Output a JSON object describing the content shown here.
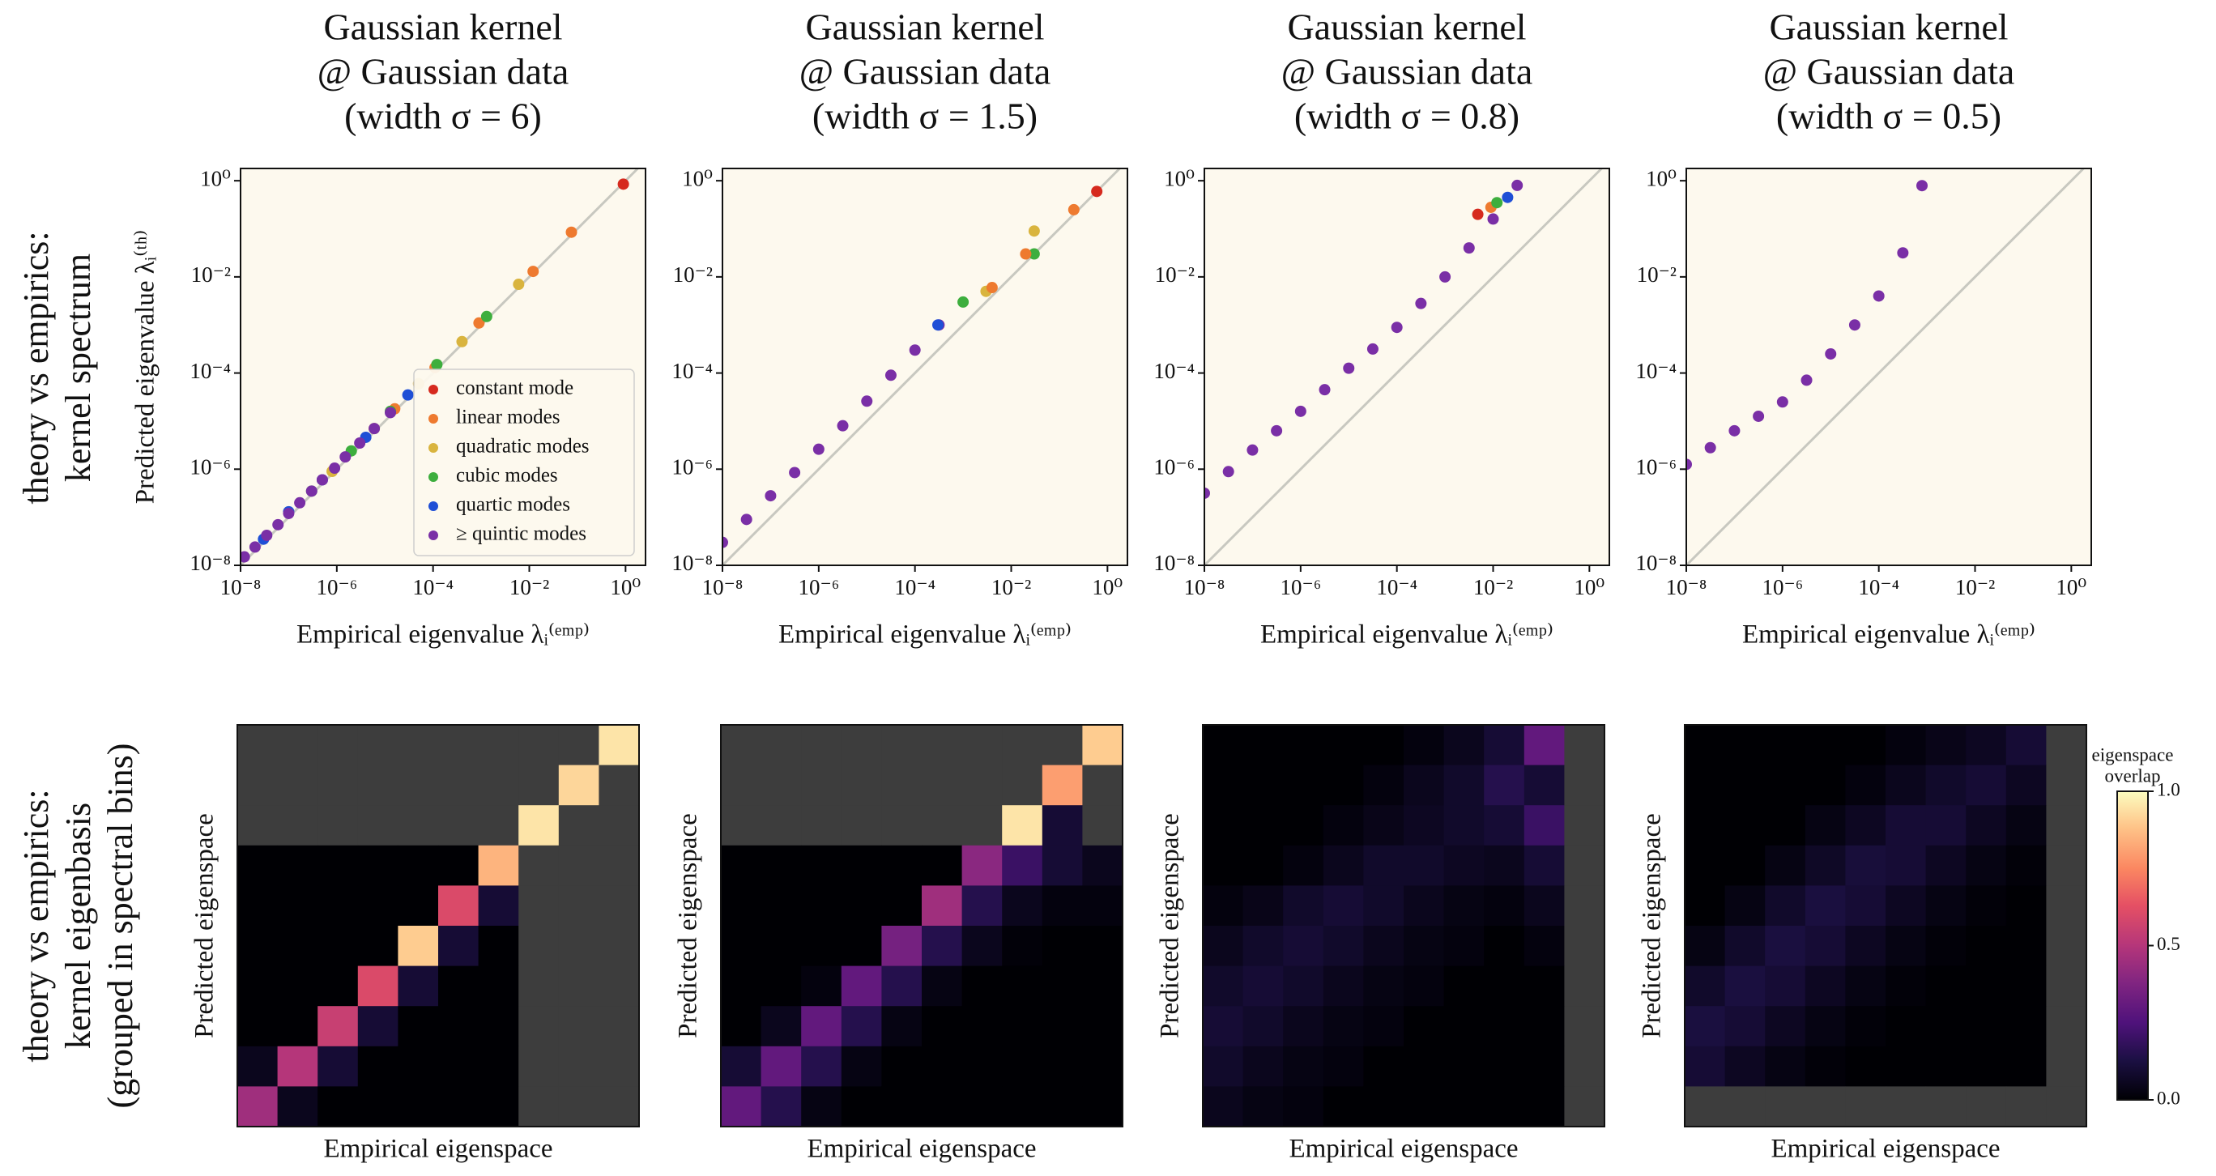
{
  "row_labels": [
    [
      "theory vs empirics:",
      "kernel spectrum"
    ],
    [
      "theory vs empirics:",
      "kernel eigenbasis",
      "(grouped in spectral bins)"
    ]
  ],
  "colorbar": {
    "title": [
      "eigenspace",
      "overlap"
    ],
    "clim": [
      0,
      1
    ],
    "ticks": [
      {
        "value": 0,
        "label": "0.0"
      },
      {
        "value": 0.5,
        "label": "0.5"
      },
      {
        "value": 1,
        "label": "1.0"
      }
    ]
  },
  "chart_data": [
    {
      "type": "scatter",
      "title": [
        "Gaussian kernel",
        "@ Gaussian data",
        "(width σ = 6)"
      ],
      "x_label": "Empirical eigenvalue λᵢ⁽ᵉᵐᵖ⁾",
      "y_label": "Predicted eigenvalue λᵢ⁽ᵗʰ⁾",
      "xscale": "log",
      "yscale": "log",
      "xlim": [
        1e-08,
        2.6
      ],
      "ylim": [
        1e-08,
        1.8
      ],
      "xticks": [
        {
          "value": 1e-08,
          "label": "10⁻⁸"
        },
        {
          "value": 1e-06,
          "label": "10⁻⁶"
        },
        {
          "value": 0.0001,
          "label": "10⁻⁴"
        },
        {
          "value": 0.01,
          "label": "10⁻²"
        },
        {
          "value": 1,
          "label": "10⁰"
        }
      ],
      "yticks": [
        {
          "value": 1e-08,
          "label": "10⁻⁸"
        },
        {
          "value": 1e-06,
          "label": "10⁻⁶"
        },
        {
          "value": 0.0001,
          "label": "10⁻⁴"
        },
        {
          "value": 0.01,
          "label": "10⁻²"
        },
        {
          "value": 1,
          "label": "10⁰"
        }
      ],
      "legend": "lower right",
      "series": [
        {
          "name": "constant mode",
          "color": "#d62a1e",
          "x": [
            0.9
          ],
          "values": [
            0.85
          ]
        },
        {
          "name": "linear modes",
          "color": "#ee7a2f",
          "x": [
            0.075,
            0.012,
            0.0009,
            0.00011,
            1.6e-05
          ],
          "values": [
            0.085,
            0.013,
            0.0011,
            0.00013,
            1.8e-05
          ]
        },
        {
          "name": "quadratic modes",
          "color": "#d9b43e",
          "x": [
            0.006,
            0.0004,
            5e-05,
            6e-06,
            8e-07
          ],
          "values": [
            0.007,
            0.00045,
            6e-05,
            7e-06,
            9e-07
          ]
        },
        {
          "name": "cubic modes",
          "color": "#3dae3d",
          "x": [
            0.0013,
            0.00012,
            1.3e-05,
            2e-06,
            3e-07
          ],
          "values": [
            0.0015,
            0.00015,
            1.6e-05,
            2.4e-06,
            3.5e-07
          ]
        },
        {
          "name": "quartic modes",
          "color": "#1f4fd6",
          "x": [
            3e-05,
            4e-06,
            5e-07,
            1e-07,
            3e-08
          ],
          "values": [
            3.5e-05,
            4.6e-06,
            6e-07,
            1.3e-07,
            3.5e-08
          ]
        },
        {
          "name": "≥ quintic modes",
          "color": "#7a2fa6",
          "x": [
            1.3e-05,
            6e-06,
            3e-06,
            1.5e-06,
            9e-07,
            5e-07,
            3e-07,
            1.7e-07,
            1e-07,
            6e-08,
            3.5e-08,
            2e-08,
            1.2e-08
          ],
          "values": [
            1.5e-05,
            7e-06,
            3.5e-06,
            1.8e-06,
            1.05e-06,
            6e-07,
            3.5e-07,
            2e-07,
            1.2e-07,
            7e-08,
            4.2e-08,
            2.4e-08,
            1.5e-08
          ]
        }
      ]
    },
    {
      "type": "scatter",
      "title": [
        "Gaussian kernel",
        "@ Gaussian data",
        "(width σ = 1.5)"
      ],
      "x_label": "Empirical eigenvalue λᵢ⁽ᵉᵐᵖ⁾",
      "xscale": "log",
      "yscale": "log",
      "xlim": [
        1e-08,
        2.6
      ],
      "ylim": [
        1e-08,
        1.8
      ],
      "xticks": [
        {
          "value": 1e-08,
          "label": "10⁻⁸"
        },
        {
          "value": 1e-06,
          "label": "10⁻⁶"
        },
        {
          "value": 0.0001,
          "label": "10⁻⁴"
        },
        {
          "value": 0.01,
          "label": "10⁻²"
        },
        {
          "value": 1,
          "label": "10⁰"
        }
      ],
      "yticks": [
        {
          "value": 1e-08,
          "label": "10⁻⁸"
        },
        {
          "value": 1e-06,
          "label": "10⁻⁶"
        },
        {
          "value": 0.0001,
          "label": "10⁻⁴"
        },
        {
          "value": 0.01,
          "label": "10⁻²"
        },
        {
          "value": 1,
          "label": "10⁰"
        }
      ],
      "series": [
        {
          "color": "#7a2fa6",
          "x": [
            1e-08,
            3.16e-08,
            1e-07,
            3.16e-07,
            1e-06,
            3.16e-06,
            1e-05,
            3.16e-05,
            0.0001,
            0.000316
          ],
          "values": [
            3e-08,
            9e-08,
            2.8e-07,
            8.5e-07,
            2.6e-06,
            8e-06,
            2.6e-05,
            9e-05,
            0.0003,
            0.001
          ]
        },
        {
          "color": "#1f4fd6",
          "x": [
            0.0003
          ],
          "values": [
            0.001
          ]
        },
        {
          "color": "#3dae3d",
          "x": [
            0.03,
            0.001
          ],
          "values": [
            0.03,
            0.003
          ]
        },
        {
          "color": "#d9b43e",
          "x": [
            0.03,
            0.003
          ],
          "values": [
            0.09,
            0.005
          ]
        },
        {
          "color": "#ee7a2f",
          "x": [
            0.2,
            0.02,
            0.004
          ],
          "values": [
            0.25,
            0.03,
            0.006
          ]
        },
        {
          "color": "#d62a1e",
          "x": [
            0.6
          ],
          "values": [
            0.6
          ]
        }
      ]
    },
    {
      "type": "scatter",
      "title": [
        "Gaussian kernel",
        "@ Gaussian data",
        "(width σ = 0.8)"
      ],
      "x_label": "Empirical eigenvalue λᵢ⁽ᵉᵐᵖ⁾",
      "xscale": "log",
      "yscale": "log",
      "xlim": [
        1e-08,
        2.6
      ],
      "ylim": [
        1e-08,
        1.8
      ],
      "xticks": [
        {
          "value": 1e-08,
          "label": "10⁻⁸"
        },
        {
          "value": 1e-06,
          "label": "10⁻⁶"
        },
        {
          "value": 0.0001,
          "label": "10⁻⁴"
        },
        {
          "value": 0.01,
          "label": "10⁻²"
        },
        {
          "value": 1,
          "label": "10⁰"
        }
      ],
      "yticks": [
        {
          "value": 1e-08,
          "label": "10⁻⁸"
        },
        {
          "value": 1e-06,
          "label": "10⁻⁶"
        },
        {
          "value": 0.0001,
          "label": "10⁻⁴"
        },
        {
          "value": 0.01,
          "label": "10⁻²"
        },
        {
          "value": 1,
          "label": "10⁰"
        }
      ],
      "series": [
        {
          "color": "#7a2fa6",
          "x": [
            1e-08,
            3.16e-08,
            1e-07,
            3.16e-07,
            1e-06,
            3.16e-06,
            1e-05,
            3.16e-05,
            0.0001,
            0.000316,
            0.001,
            0.00316,
            0.01,
            0.0316
          ],
          "values": [
            3.16e-07,
            8.9e-07,
            2.5e-06,
            6.3e-06,
            1.6e-05,
            4.5e-05,
            0.000126,
            0.000316,
            0.00089,
            0.0028,
            0.01,
            0.04,
            0.16,
            0.8
          ]
        },
        {
          "color": "#d62a1e",
          "x": [
            0.0048
          ],
          "values": [
            0.2
          ]
        },
        {
          "color": "#ee7a2f",
          "x": [
            0.009
          ],
          "values": [
            0.28
          ]
        },
        {
          "color": "#3dae3d",
          "x": [
            0.012
          ],
          "values": [
            0.35
          ]
        },
        {
          "color": "#1f4fd6",
          "x": [
            0.02
          ],
          "values": [
            0.45
          ]
        }
      ]
    },
    {
      "type": "scatter",
      "title": [
        "Gaussian kernel",
        "@ Gaussian data",
        "(width σ = 0.5)"
      ],
      "x_label": "Empirical eigenvalue λᵢ⁽ᵉᵐᵖ⁾",
      "xscale": "log",
      "yscale": "log",
      "xlim": [
        1e-08,
        2.6
      ],
      "ylim": [
        1e-08,
        1.8
      ],
      "xticks": [
        {
          "value": 1e-08,
          "label": "10⁻⁸"
        },
        {
          "value": 1e-06,
          "label": "10⁻⁶"
        },
        {
          "value": 0.0001,
          "label": "10⁻⁴"
        },
        {
          "value": 0.01,
          "label": "10⁻²"
        },
        {
          "value": 1,
          "label": "10⁰"
        }
      ],
      "yticks": [
        {
          "value": 1e-08,
          "label": "10⁻⁸"
        },
        {
          "value": 1e-06,
          "label": "10⁻⁶"
        },
        {
          "value": 0.0001,
          "label": "10⁻⁴"
        },
        {
          "value": 0.01,
          "label": "10⁻²"
        },
        {
          "value": 1,
          "label": "10⁰"
        }
      ],
      "series": [
        {
          "color": "#7a2fa6",
          "x": [
            1e-08,
            3.16e-08,
            1e-07,
            3.16e-07,
            1e-06,
            3.16e-06,
            1e-05,
            3.16e-05,
            0.0001,
            0.000316,
            0.00079
          ],
          "values": [
            1.26e-06,
            2.8e-06,
            6.3e-06,
            1.26e-05,
            2.5e-05,
            7.1e-05,
            0.00025,
            0.001,
            0.004,
            0.0316,
            0.79
          ]
        }
      ]
    },
    {
      "type": "heatmap",
      "x_label": "Empirical eigenspace",
      "y_label": "Predicted eigenspace",
      "z": [
        [
          null,
          null,
          null,
          null,
          null,
          null,
          null,
          null,
          null,
          0.95
        ],
        [
          null,
          null,
          null,
          null,
          null,
          null,
          null,
          null,
          0.92,
          null
        ],
        [
          null,
          null,
          null,
          null,
          null,
          null,
          null,
          0.95,
          null,
          null
        ],
        [
          0,
          0,
          0,
          0,
          0,
          0,
          0.85,
          null,
          null,
          null
        ],
        [
          0,
          0,
          0,
          0,
          0,
          0.6,
          0.1,
          null,
          null,
          null
        ],
        [
          0,
          0,
          0,
          0,
          0.9,
          0.1,
          0,
          null,
          null,
          null
        ],
        [
          0,
          0,
          0,
          0.6,
          0.1,
          0,
          0,
          null,
          null,
          null
        ],
        [
          0,
          0,
          0.55,
          0.1,
          0,
          0,
          0,
          null,
          null,
          null
        ],
        [
          0.05,
          0.5,
          0.1,
          0,
          0,
          0,
          0,
          null,
          null,
          null
        ],
        [
          0.45,
          0.05,
          0,
          0,
          0,
          0,
          0,
          null,
          null,
          null
        ]
      ]
    },
    {
      "type": "heatmap",
      "x_label": "Empirical eigenspace",
      "y_label": "Predicted eigenspace",
      "z": [
        [
          null,
          null,
          null,
          null,
          null,
          null,
          null,
          null,
          null,
          0.9
        ],
        [
          null,
          null,
          null,
          null,
          null,
          null,
          null,
          null,
          0.8,
          null
        ],
        [
          null,
          null,
          null,
          null,
          null,
          null,
          null,
          0.95,
          0.1,
          null
        ],
        [
          0,
          0,
          0,
          0,
          0,
          0,
          0.4,
          0.2,
          0.1,
          0.05
        ],
        [
          0,
          0,
          0,
          0,
          0,
          0.45,
          0.15,
          0.05,
          0.02,
          0.02
        ],
        [
          0,
          0,
          0,
          0,
          0.35,
          0.15,
          0.05,
          0.01,
          0,
          0
        ],
        [
          0,
          0,
          0.02,
          0.3,
          0.15,
          0.03,
          0,
          0,
          0,
          0
        ],
        [
          0,
          0.05,
          0.3,
          0.15,
          0.03,
          0,
          0,
          0,
          0,
          0
        ],
        [
          0.1,
          0.3,
          0.15,
          0.03,
          0,
          0,
          0,
          0,
          0,
          0
        ],
        [
          0.3,
          0.15,
          0.03,
          0,
          0,
          0,
          0,
          0,
          0,
          0
        ]
      ]
    },
    {
      "type": "heatmap",
      "x_label": "Empirical eigenspace",
      "y_label": "Predicted eigenspace",
      "z": [
        [
          0,
          0,
          0,
          0,
          0,
          0.02,
          0.05,
          0.1,
          0.3,
          null
        ],
        [
          0,
          0,
          0,
          0,
          0.02,
          0.05,
          0.08,
          0.15,
          0.1,
          null
        ],
        [
          0,
          0,
          0,
          0.02,
          0.04,
          0.06,
          0.08,
          0.1,
          0.2,
          null
        ],
        [
          0,
          0,
          0.02,
          0.05,
          0.08,
          0.08,
          0.06,
          0.05,
          0.1,
          null
        ],
        [
          0.02,
          0.04,
          0.08,
          0.1,
          0.08,
          0.05,
          0.03,
          0.02,
          0.05,
          null
        ],
        [
          0.05,
          0.08,
          0.1,
          0.08,
          0.05,
          0.03,
          0.02,
          0,
          0.02,
          null
        ],
        [
          0.08,
          0.1,
          0.08,
          0.05,
          0.03,
          0.02,
          0,
          0,
          0,
          null
        ],
        [
          0.1,
          0.08,
          0.05,
          0.03,
          0.02,
          0,
          0,
          0,
          0,
          null
        ],
        [
          0.08,
          0.05,
          0.03,
          0.02,
          0,
          0,
          0,
          0,
          0,
          null
        ],
        [
          0.05,
          0.03,
          0.02,
          0,
          0,
          0,
          0,
          0,
          0,
          null
        ]
      ]
    },
    {
      "type": "heatmap",
      "x_label": "Empirical eigenspace",
      "y_label": "Predicted eigenspace",
      "z": [
        [
          0,
          0,
          0,
          0,
          0,
          0.02,
          0.04,
          0.06,
          0.1,
          null
        ],
        [
          0,
          0,
          0,
          0,
          0.02,
          0.05,
          0.08,
          0.1,
          0.06,
          null
        ],
        [
          0,
          0,
          0,
          0.03,
          0.06,
          0.1,
          0.1,
          0.06,
          0.03,
          null
        ],
        [
          0,
          0,
          0.03,
          0.07,
          0.11,
          0.1,
          0.06,
          0.03,
          0.01,
          null
        ],
        [
          0,
          0.03,
          0.08,
          0.12,
          0.1,
          0.06,
          0.03,
          0.01,
          0,
          null
        ],
        [
          0.03,
          0.08,
          0.12,
          0.1,
          0.06,
          0.03,
          0.01,
          0,
          0,
          null
        ],
        [
          0.08,
          0.12,
          0.1,
          0.06,
          0.03,
          0.01,
          0,
          0,
          0,
          null
        ],
        [
          0.12,
          0.1,
          0.06,
          0.03,
          0.01,
          0,
          0,
          0,
          0,
          null
        ],
        [
          0.1,
          0.06,
          0.03,
          0.01,
          0,
          0,
          0,
          0,
          0,
          null
        ],
        [
          null,
          null,
          null,
          null,
          null,
          null,
          null,
          null,
          null,
          null
        ]
      ]
    }
  ]
}
